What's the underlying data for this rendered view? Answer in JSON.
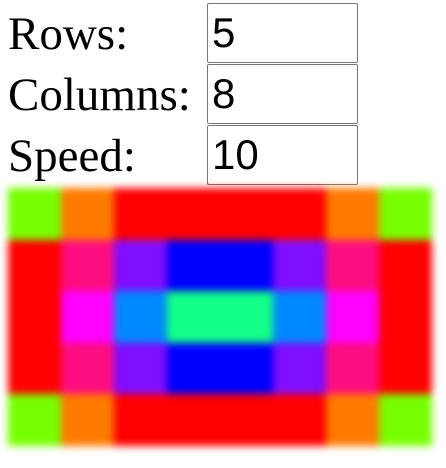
{
  "controls": {
    "rows": {
      "label": "Rows:",
      "value": "5"
    },
    "columns": {
      "label": "Columns:",
      "value": "8"
    },
    "speed": {
      "label": "Speed:",
      "value": "10"
    }
  },
  "grid": {
    "rows": 5,
    "columns": 8,
    "colors": [
      [
        "#77ff00",
        "#ff7a00",
        "#ff0000",
        "#ff0000",
        "#ff0000",
        "#ff0000",
        "#ff7a00",
        "#77ff00"
      ],
      [
        "#ff0000",
        "#ff0d80",
        "#7f0dff",
        "#0000ff",
        "#0000ff",
        "#7f0dff",
        "#ff0d80",
        "#ff0000"
      ],
      [
        "#ff0000",
        "#ff00ff",
        "#0088ff",
        "#12ff88",
        "#12ff88",
        "#0088ff",
        "#ff00ff",
        "#ff0000"
      ],
      [
        "#ff0000",
        "#ff0d80",
        "#7f0dff",
        "#0000ff",
        "#0000ff",
        "#7f0dff",
        "#ff0d80",
        "#ff0000"
      ],
      [
        "#77ff00",
        "#ff7a00",
        "#ff0000",
        "#ff0000",
        "#ff0000",
        "#ff0000",
        "#ff7a00",
        "#77ff00"
      ]
    ]
  }
}
